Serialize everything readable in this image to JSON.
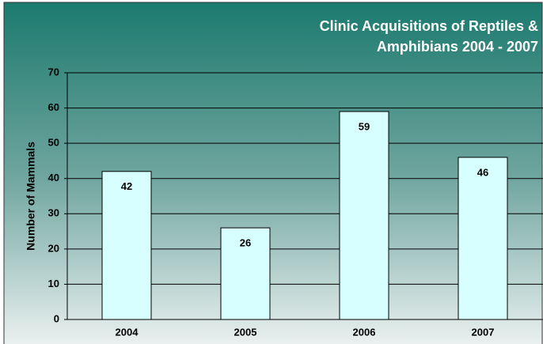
{
  "chart_data": {
    "type": "bar",
    "title": "Clinic Acquisitions of Reptiles & Amphibians 2004 - 2007",
    "y_label": "Number of Mammals",
    "categories": [
      "2004",
      "2005",
      "2006",
      "2007"
    ],
    "values": [
      42,
      26,
      59,
      46
    ],
    "color": "#d8ffff",
    "ylim": [
      0,
      70
    ],
    "yticks": [
      0,
      10,
      20,
      30,
      40,
      50,
      60,
      70
    ],
    "grid": true
  }
}
